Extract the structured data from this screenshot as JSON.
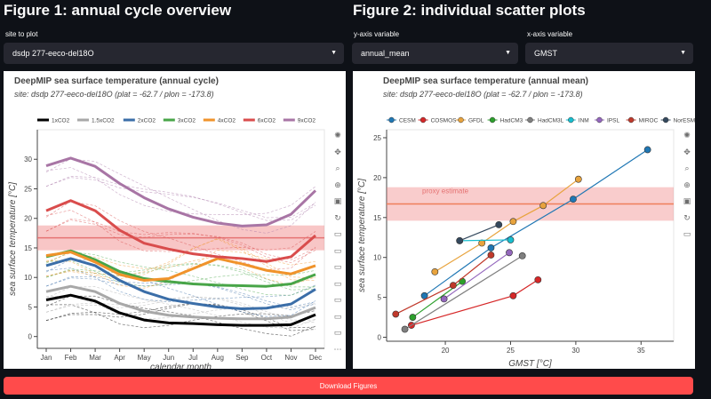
{
  "figure1": {
    "heading": "Figure 1: annual cycle overview",
    "site_label": "site to plot",
    "site_value": "dsdp 277-eeco-del18O"
  },
  "figure2": {
    "heading": "Figure 2: individual scatter plots",
    "y_label": "y-axis variable",
    "y_value": "annual_mean",
    "x_label": "x-axis variable",
    "x_value": "GMST"
  },
  "download_label": "Download Figures",
  "chart_data": [
    {
      "type": "line",
      "title": "DeepMIP sea surface temperature (annual cycle)",
      "subtitle": "site: dsdp 277-eeco-del18O (plat = -62.7 / plon = -173.8)",
      "xlabel": "calendar month",
      "ylabel": "sea surface temperature [°C]",
      "categories": [
        "Jan",
        "Feb",
        "Mar",
        "Apr",
        "May",
        "Jun",
        "Jul",
        "Aug",
        "Sep",
        "Oct",
        "Nov",
        "Dec"
      ],
      "ylim": [
        -2,
        35
      ],
      "yticks": [
        0,
        5,
        10,
        15,
        20,
        25,
        30
      ],
      "legend_position": "top",
      "proxy": {
        "value": 16.7,
        "lower": 14.6,
        "upper": 18.8
      },
      "series": [
        {
          "name": "1xCO2",
          "color": "#000000",
          "values": [
            6.2,
            7.0,
            6.0,
            4.0,
            2.8,
            2.3,
            2.2,
            2.0,
            1.9,
            1.9,
            2.0,
            3.7
          ]
        },
        {
          "name": "1.5xCO2",
          "color": "#a8a8a8",
          "values": [
            7.6,
            8.5,
            7.6,
            5.6,
            4.3,
            3.6,
            3.3,
            3.1,
            3.0,
            3.0,
            3.3,
            4.9
          ]
        },
        {
          "name": "2xCO2",
          "color": "#3b6ea8",
          "values": [
            12.0,
            13.2,
            12.0,
            9.5,
            7.6,
            6.3,
            5.6,
            5.0,
            4.7,
            4.8,
            5.5,
            8.0
          ]
        },
        {
          "name": "3xCO2",
          "color": "#48a548",
          "values": [
            13.5,
            14.5,
            13.0,
            11.0,
            9.8,
            9.3,
            8.9,
            8.7,
            8.6,
            8.5,
            8.9,
            10.5
          ]
        },
        {
          "name": "4xCO2",
          "color": "#f0932b",
          "values": [
            13.7,
            14.3,
            12.6,
            10.5,
            9.5,
            9.8,
            11.5,
            13.2,
            12.3,
            11.2,
            10.6,
            12.0
          ]
        },
        {
          "name": "6xCO2",
          "color": "#d94c4c",
          "values": [
            21.3,
            23.0,
            21.3,
            18.0,
            15.8,
            14.8,
            14.0,
            13.5,
            13.2,
            12.7,
            13.5,
            17.1
          ]
        },
        {
          "name": "9xCO2",
          "color": "#a875a5",
          "values": [
            28.9,
            30.2,
            28.8,
            25.9,
            23.5,
            21.6,
            20.2,
            19.2,
            18.7,
            18.9,
            20.7,
            24.7
          ]
        }
      ]
    },
    {
      "type": "scatter",
      "title": "DeepMIP sea surface temperature (annual mean)",
      "subtitle": "site: dsdp 277-eeco-del18O (plat = -62.7 / plon = -173.8)",
      "xlabel": "GMST [°C]",
      "ylabel": "sea surface temperature [°C]",
      "xlim": [
        15.5,
        37.5
      ],
      "ylim": [
        -0.5,
        26
      ],
      "xticks": [
        20,
        25,
        30,
        35
      ],
      "yticks": [
        0,
        5,
        10,
        15,
        20,
        25
      ],
      "legend_position": "top",
      "proxy": {
        "value": 16.7,
        "lower": 14.6,
        "upper": 18.8,
        "label": "proxy estimate"
      },
      "series": [
        {
          "name": "CESM",
          "color": "#1f77b4",
          "x": [
            18.4,
            23.5,
            29.8,
            35.5
          ],
          "y": [
            5.2,
            11.2,
            17.3,
            23.5
          ]
        },
        {
          "name": "COSMOS",
          "color": "#d62728",
          "x": [
            17.4,
            25.2,
            27.1
          ],
          "y": [
            1.5,
            5.2,
            7.2
          ]
        },
        {
          "name": "GFDL",
          "color": "#e8a33d",
          "x": [
            19.2,
            22.8,
            25.2,
            27.5,
            30.2
          ],
          "y": [
            8.2,
            11.8,
            14.5,
            16.5,
            19.8
          ]
        },
        {
          "name": "HadCM3",
          "color": "#2ca02c",
          "x": [
            17.5,
            21.3
          ],
          "y": [
            2.5,
            7.0
          ]
        },
        {
          "name": "HadCM3L",
          "color": "#7f7f7f",
          "x": [
            16.9,
            25.9
          ],
          "y": [
            1.0,
            10.2
          ]
        },
        {
          "name": "INM",
          "color": "#17becf",
          "x": [
            21.1,
            25.0
          ],
          "y": [
            12.1,
            12.2
          ]
        },
        {
          "name": "IPSL",
          "color": "#9467bd",
          "x": [
            19.9,
            24.9
          ],
          "y": [
            4.8,
            10.6
          ]
        },
        {
          "name": "MIROC",
          "color": "#c0392b",
          "x": [
            16.2,
            20.6,
            23.5
          ],
          "y": [
            2.9,
            6.5,
            10.3
          ]
        },
        {
          "name": "NorESM",
          "color": "#34495e",
          "x": [
            21.1,
            24.1
          ],
          "y": [
            12.1,
            14.1
          ]
        }
      ]
    }
  ]
}
